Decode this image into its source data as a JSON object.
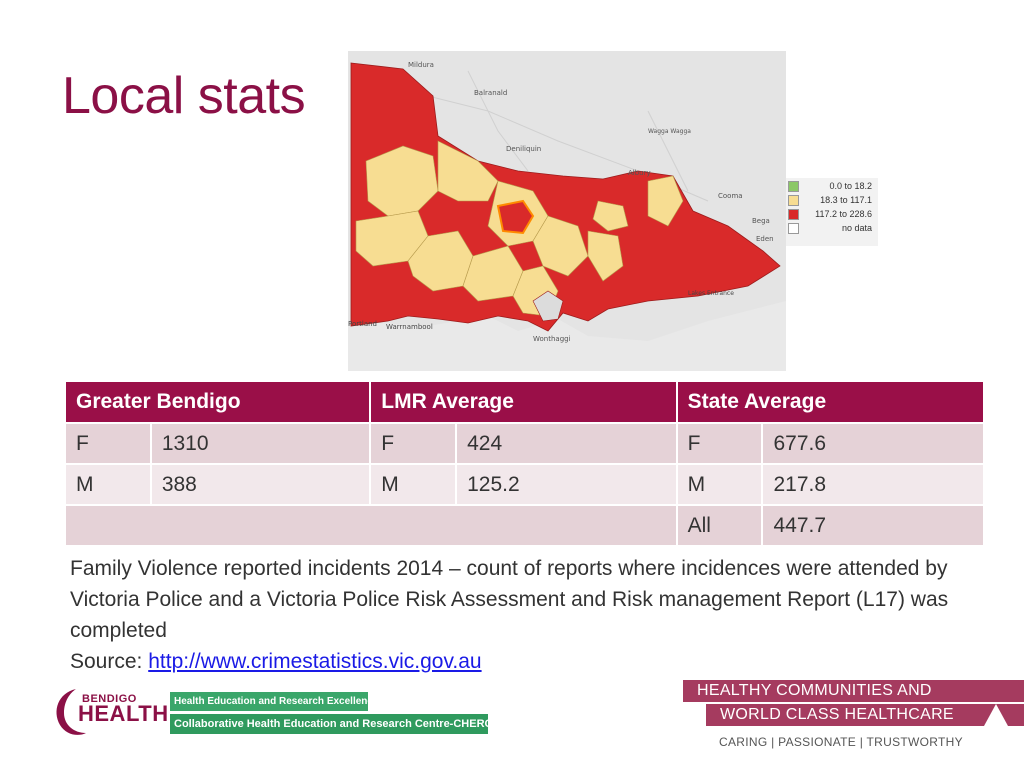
{
  "slide": {
    "title": "Local stats"
  },
  "map": {
    "place_labels": [
      "Mildura",
      "Balranald",
      "Deniliquin",
      "Wagga Wagga",
      "Albury",
      "Cooma",
      "Bega",
      "Eden",
      "Lakes Entrance",
      "Portland",
      "Warrnambool",
      "Wonthaggi"
    ],
    "legend": [
      {
        "label": "0.0 to 18.2",
        "color": "#8cc867"
      },
      {
        "label": "18.3 to 117.1",
        "color": "#f7dd92"
      },
      {
        "label": "117.2 to 228.6",
        "color": "#d92a2a"
      },
      {
        "label": "no data",
        "color": "#ffffff"
      }
    ],
    "colors": {
      "high": "#d92a2a",
      "mid": "#f7dd92",
      "background": "#e6e6e6"
    }
  },
  "table": {
    "headers": [
      "Greater Bendigo",
      "LMR Average",
      "State Average"
    ],
    "rows": [
      {
        "gb_label": "F",
        "gb_value": "1310",
        "lmr_label": "F",
        "lmr_value": "424",
        "state_label": "F",
        "state_value": "677.6"
      },
      {
        "gb_label": "M",
        "gb_value": "388",
        "lmr_label": "M",
        "lmr_value": "125.2",
        "state_label": "M",
        "state_value": "217.8"
      },
      {
        "state_label": "All",
        "state_value": "447.7"
      }
    ]
  },
  "note": {
    "text": "Family Violence reported incidents 2014 – count of reports where incidences were attended by Victoria Police and a Victoria Police Risk Assessment and Risk management Report (L17) was completed",
    "source_prefix": "Source: ",
    "source_link": "http://www.crimestatistics.vic.gov.au"
  },
  "footer": {
    "logo_top": "BENDIGO",
    "logo_main": "HEALTH",
    "bar1": "Health Education and Research Excellence",
    "bar2": "Collaborative Health Education and Research Centre-CHERC",
    "slogan1": "HEALTHY COMMUNITIES AND",
    "slogan2": "WORLD CLASS HEALTHCARE",
    "slogan3": "CARING  |  PASSIONATE  |  TRUSTWORTHY"
  }
}
